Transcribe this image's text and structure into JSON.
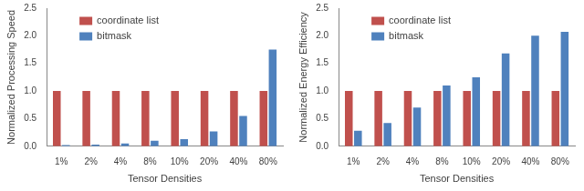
{
  "chart_data": [
    {
      "type": "bar",
      "ylabel": "Normalized Processing Speed",
      "xlabel": "Tensor Densities",
      "categories": [
        "1%",
        "2%",
        "4%",
        "8%",
        "10%",
        "20%",
        "40%",
        "80%"
      ],
      "series": [
        {
          "name": "coordinate list",
          "color": "#c0504d",
          "values": [
            1,
            1,
            1,
            1,
            1,
            1,
            1,
            1
          ]
        },
        {
          "name": "bitmask",
          "color": "#4f81bd",
          "values": [
            0.02,
            0.03,
            0.05,
            0.1,
            0.13,
            0.27,
            0.55,
            1.75
          ]
        }
      ],
      "ylim": [
        0,
        2.5
      ],
      "yticks": [
        {
          "value": 0,
          "label": "0.0"
        },
        0.5,
        {
          "value": 1,
          "label": "1.0"
        },
        1.5,
        {
          "value": 2,
          "label": "2.0"
        },
        2.5
      ],
      "grid": false,
      "legend": "upper left"
    },
    {
      "type": "bar",
      "ylabel": "Normalized Energy Efficiency",
      "xlabel": "Tensor Densities",
      "categories": [
        "1%",
        "2%",
        "4%",
        "8%",
        "10%",
        "20%",
        "40%",
        "80%"
      ],
      "series": [
        {
          "name": "coordinate list",
          "color": "#c0504d",
          "values": [
            1,
            1,
            1,
            1,
            1,
            1,
            1,
            1
          ]
        },
        {
          "name": "bitmask",
          "color": "#4f81bd",
          "values": [
            0.28,
            0.42,
            0.7,
            1.1,
            1.25,
            1.68,
            2.0,
            2.07
          ]
        }
      ],
      "ylim": [
        0,
        2.5
      ],
      "yticks": [
        {
          "value": 0,
          "label": "0.0"
        },
        0.5,
        {
          "value": 1,
          "label": "1.0"
        },
        1.5,
        {
          "value": 2,
          "label": "2.0"
        },
        2.5
      ],
      "grid": false,
      "legend": "upper left"
    }
  ]
}
